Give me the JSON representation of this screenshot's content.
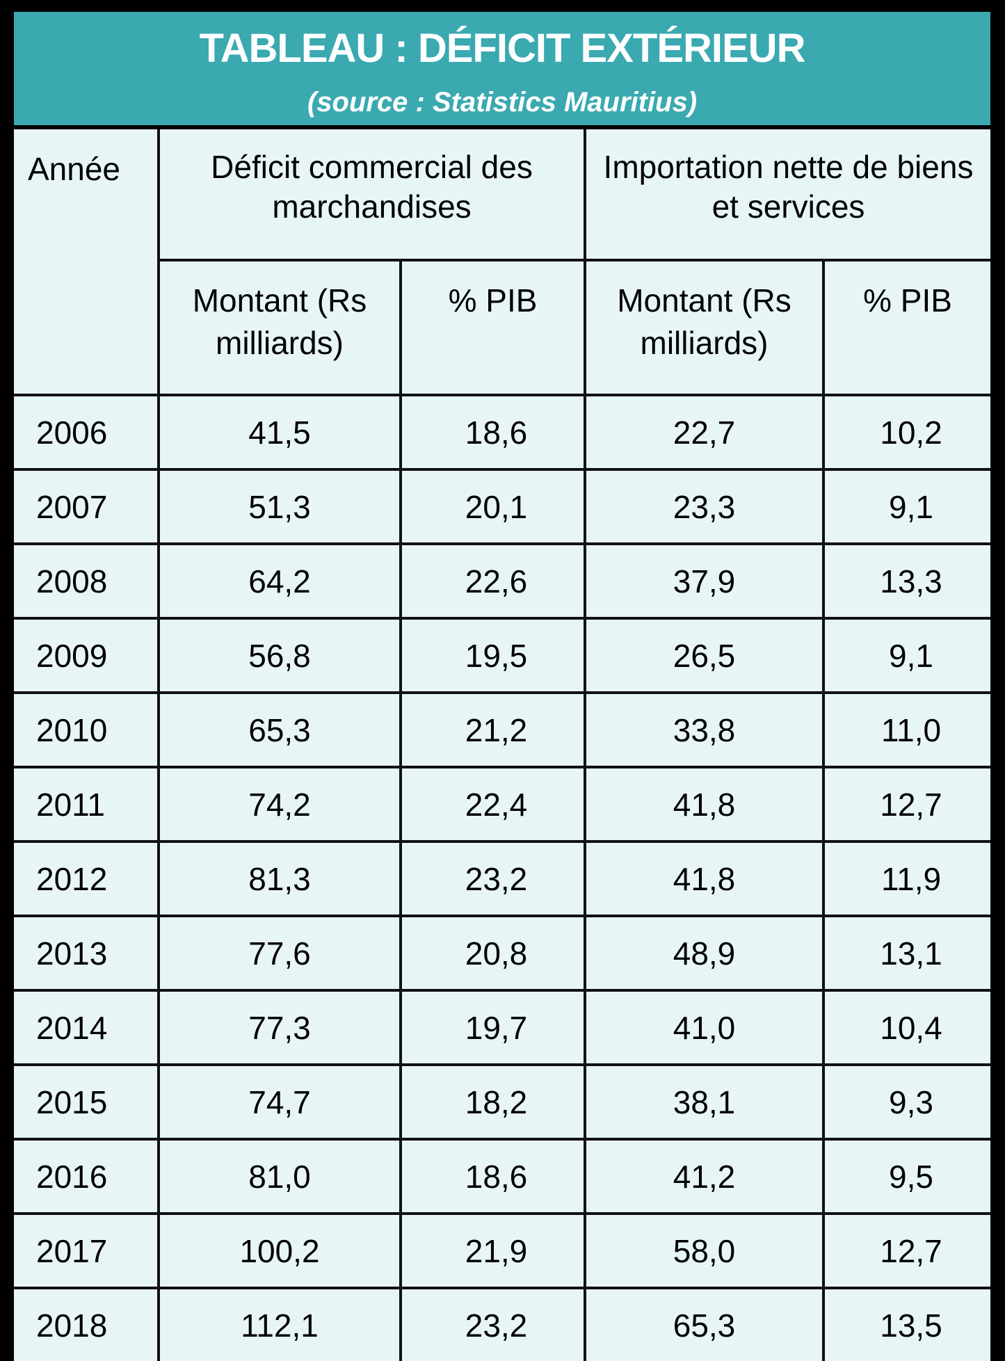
{
  "header": {
    "title": "TABLEAU : DÉFICIT EXTÉRIEUR",
    "subtitle": "(source : Statistics Mauritius)",
    "color": "#3aa9b0"
  },
  "columns": {
    "year": "Année",
    "group1": "Déficit commercial des marchandises",
    "group2": "Importation nette de biens et services",
    "amount": "Montant (Rs milliards)",
    "pct": "% PIB"
  },
  "chart_data": {
    "type": "table",
    "title": "TABLEAU : DÉFICIT EXTÉRIEUR",
    "subtitle": "(source : Statistics Mauritius)",
    "rows": [
      {
        "year": "2006",
        "deficit_amount": "41,5",
        "deficit_pct": "18,6",
        "import_amount": "22,7",
        "import_pct": "10,2"
      },
      {
        "year": "2007",
        "deficit_amount": "51,3",
        "deficit_pct": "20,1",
        "import_amount": "23,3",
        "import_pct": "9,1"
      },
      {
        "year": "2008",
        "deficit_amount": "64,2",
        "deficit_pct": "22,6",
        "import_amount": "37,9",
        "import_pct": "13,3"
      },
      {
        "year": "2009",
        "deficit_amount": "56,8",
        "deficit_pct": "19,5",
        "import_amount": "26,5",
        "import_pct": "9,1"
      },
      {
        "year": "2010",
        "deficit_amount": "65,3",
        "deficit_pct": "21,2",
        "import_amount": "33,8",
        "import_pct": "11,0"
      },
      {
        "year": "2011",
        "deficit_amount": "74,2",
        "deficit_pct": "22,4",
        "import_amount": "41,8",
        "import_pct": "12,7"
      },
      {
        "year": "2012",
        "deficit_amount": "81,3",
        "deficit_pct": "23,2",
        "import_amount": "41,8",
        "import_pct": "11,9"
      },
      {
        "year": "2013",
        "deficit_amount": "77,6",
        "deficit_pct": "20,8",
        "import_amount": "48,9",
        "import_pct": "13,1"
      },
      {
        "year": "2014",
        "deficit_amount": "77,3",
        "deficit_pct": "19,7",
        "import_amount": "41,0",
        "import_pct": "10,4"
      },
      {
        "year": "2015",
        "deficit_amount": "74,7",
        "deficit_pct": "18,2",
        "import_amount": "38,1",
        "import_pct": "9,3"
      },
      {
        "year": "2016",
        "deficit_amount": "81,0",
        "deficit_pct": "18,6",
        "import_amount": "41,2",
        "import_pct": "9,5"
      },
      {
        "year": "2017",
        "deficit_amount": "100,2",
        "deficit_pct": "21,9",
        "import_amount": "58,0",
        "import_pct": "12,7"
      },
      {
        "year": "2018",
        "deficit_amount": "112,1",
        "deficit_pct": "23,2",
        "import_amount": "65,3",
        "import_pct": "13,5"
      }
    ]
  }
}
